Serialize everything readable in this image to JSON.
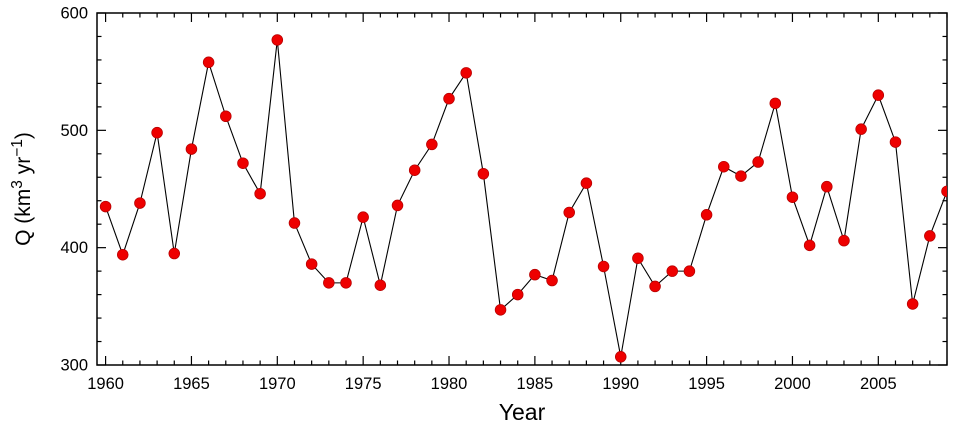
{
  "chart_data": {
    "type": "line",
    "title": "",
    "xlabel": "Year",
    "ylabel": "Q (km³ yr⁻¹)",
    "ylabel_parts": [
      {
        "text": "Q (km",
        "super": false
      },
      {
        "text": "3",
        "super": true
      },
      {
        "text": " yr",
        "super": false
      },
      {
        "text": "−1",
        "super": true
      },
      {
        "text": ")",
        "super": false
      }
    ],
    "x": [
      1960,
      1961,
      1962,
      1963,
      1964,
      1965,
      1966,
      1967,
      1968,
      1969,
      1970,
      1971,
      1972,
      1973,
      1974,
      1975,
      1976,
      1977,
      1978,
      1979,
      1980,
      1981,
      1982,
      1983,
      1984,
      1985,
      1986,
      1987,
      1988,
      1989,
      1990,
      1991,
      1992,
      1993,
      1994,
      1995,
      1996,
      1997,
      1998,
      1999,
      2000,
      2001,
      2002,
      2003,
      2004,
      2005,
      2006,
      2007,
      2008,
      2009
    ],
    "y": [
      435,
      394,
      438,
      498,
      395,
      484,
      558,
      512,
      472,
      446,
      577,
      421,
      386,
      370,
      370,
      426,
      368,
      436,
      466,
      488,
      527,
      549,
      463,
      347,
      360,
      377,
      372,
      430,
      455,
      384,
      307,
      391,
      367,
      380,
      380,
      428,
      469,
      461,
      473,
      523,
      443,
      402,
      452,
      406,
      501,
      530,
      490,
      352,
      410,
      448
    ],
    "xlim": [
      1959.5,
      2009
    ],
    "ylim": [
      300,
      600
    ],
    "x_major_ticks": [
      1960,
      1965,
      1970,
      1975,
      1980,
      1985,
      1990,
      1995,
      2000,
      2005
    ],
    "x_minor_step": 1,
    "y_major_ticks": [
      300,
      400,
      500,
      600
    ],
    "y_minor_step": 20,
    "grid": false,
    "legend": "none",
    "line_color": "#000000",
    "marker_color": "#ee0000",
    "marker_edge_color": "#b40000",
    "frame_color": "#000000",
    "background": "#ffffff"
  }
}
